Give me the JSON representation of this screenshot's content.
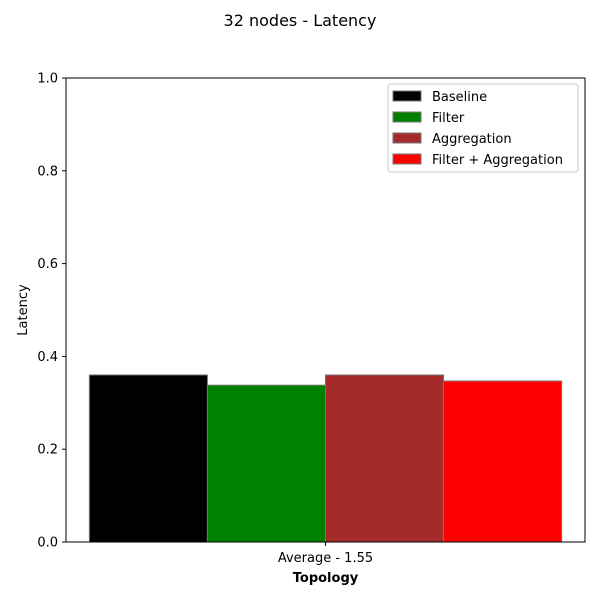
{
  "chart_data": {
    "type": "bar",
    "title": "32 nodes - Latency",
    "xlabel": "Topology",
    "ylabel": "Latency",
    "categories": [
      "Average - 1.55"
    ],
    "ylim": [
      0,
      1.0
    ],
    "yticks": [
      "0.0",
      "0.2",
      "0.4",
      "0.6",
      "0.8",
      "1.0"
    ],
    "series": [
      {
        "name": "Baseline",
        "values": [
          0.36
        ],
        "color": "#000000"
      },
      {
        "name": "Filter",
        "values": [
          0.338
        ],
        "color": "#008000"
      },
      {
        "name": "Aggregation",
        "values": [
          0.36
        ],
        "color": "#a52a2a"
      },
      {
        "name": "Filter + Aggregation",
        "values": [
          0.347
        ],
        "color": "#ff0000"
      }
    ],
    "legend_position": "top-right",
    "grid": false
  }
}
